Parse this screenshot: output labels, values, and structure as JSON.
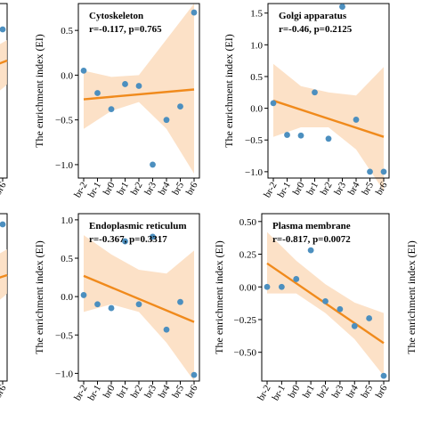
{
  "chart_data": [
    {
      "id": "cytoskeleton",
      "type": "scatter",
      "annotation_title": "Cytoskeleton",
      "annotation_stats": "r=-0.117, p=0.765",
      "ylabel": "The enrichment index (EI)",
      "xlabel": "",
      "categories": [
        "br-2",
        "br-1",
        "br0",
        "br1",
        "br2",
        "br3",
        "br4",
        "br5",
        "br6"
      ],
      "ylim": [
        -1.15,
        0.8
      ],
      "yticks": [
        -1.0,
        -0.5,
        0.0,
        0.5
      ],
      "ytick_labels": [
        "−1.0",
        "−0.5",
        "0.0",
        "0.5"
      ],
      "points": [
        0.05,
        -0.2,
        -0.38,
        -0.1,
        -0.12,
        -1.0,
        -0.5,
        -0.35,
        0.7
      ],
      "fit_line": [
        -0.27,
        -0.16
      ],
      "ci_upper": [
        0.05,
        -0.02,
        0.0,
        0.4,
        0.8
      ],
      "ci_lower": [
        -0.6,
        -0.4,
        -0.3,
        -0.6,
        -1.1
      ],
      "grid": false,
      "point_color": "#4c8fbf",
      "line_color": "#f08a1c",
      "band_color": "#fbd9b9"
    },
    {
      "id": "golgi",
      "type": "scatter",
      "annotation_title": "Golgi apparatus",
      "annotation_stats": "r=-0.46, p=0.2125",
      "ylabel": "The enrichment index (EI)",
      "xlabel": "",
      "categories": [
        "br-2",
        "br-1",
        "br0",
        "br1",
        "br2",
        "br3",
        "br4",
        "br5",
        "br6"
      ],
      "ylim": [
        -1.1,
        1.65
      ],
      "yticks": [
        -1.0,
        -0.5,
        0.0,
        0.5,
        1.0,
        1.5
      ],
      "ytick_labels": [
        "−1.0",
        "−0.5",
        "0.0",
        "0.5",
        "1.0",
        "1.5"
      ],
      "points": [
        0.08,
        -0.42,
        -0.43,
        0.25,
        -0.48,
        1.6,
        -0.18,
        -1.0,
        -1.0
      ],
      "fit_line": [
        0.12,
        -0.45
      ],
      "ci_upper": [
        0.7,
        0.35,
        0.25,
        0.2,
        0.65
      ],
      "ci_lower": [
        -0.45,
        -0.3,
        -0.3,
        -0.65,
        -1.3
      ],
      "grid": false,
      "point_color": "#4c8fbf",
      "line_color": "#f08a1c",
      "band_color": "#fbd9b9"
    },
    {
      "id": "er",
      "type": "scatter",
      "annotation_title": "Endoplasmic reticulum",
      "annotation_stats": "r=-0.367, p=0.3317",
      "ylabel": "The enrichment index (EI)",
      "xlabel": "",
      "categories": [
        "br-2",
        "br-1",
        "br0",
        "br1",
        "br2",
        "br3",
        "br4",
        "br5",
        "br6"
      ],
      "ylim": [
        -1.1,
        1.08
      ],
      "yticks": [
        -1.0,
        -0.5,
        0.0,
        0.5,
        1.0
      ],
      "ytick_labels": [
        "−1.0",
        "−0.5",
        "0.0",
        "0.5",
        "1.0"
      ],
      "points": [
        0.02,
        -0.1,
        -0.15,
        0.72,
        -0.1,
        0.78,
        -0.43,
        -0.07,
        -1.02
      ],
      "fit_line": [
        0.27,
        -0.33
      ],
      "ci_upper": [
        0.8,
        0.55,
        0.35,
        0.3,
        0.6
      ],
      "ci_lower": [
        -0.2,
        -0.1,
        -0.2,
        -0.6,
        -1.1
      ],
      "grid": false,
      "point_color": "#4c8fbf",
      "line_color": "#f08a1c",
      "band_color": "#fbd9b9"
    },
    {
      "id": "plasma",
      "type": "scatter",
      "annotation_title": "Plasma membrane",
      "annotation_stats": "r=-0.817, p=0.0072",
      "ylabel": "The enrichment index (EI)",
      "xlabel": "",
      "categories": [
        "br-2",
        "br-1",
        "br0",
        "br1",
        "br2",
        "br3",
        "br4",
        "br5",
        "br6"
      ],
      "ylim": [
        -0.72,
        0.56
      ],
      "yticks": [
        -0.5,
        -0.25,
        0.0,
        0.25,
        0.5
      ],
      "ytick_labels": [
        "−0.50",
        "−0.25",
        "0.00",
        "0.25",
        "0.50"
      ],
      "points": [
        0.0,
        0.0,
        0.06,
        0.28,
        -0.11,
        -0.17,
        -0.3,
        -0.24,
        -0.68
      ],
      "fit_line": [
        0.18,
        -0.43
      ],
      "ci_upper": [
        0.42,
        0.2,
        0.02,
        -0.12,
        -0.2
      ],
      "ci_lower": [
        -0.05,
        -0.05,
        -0.2,
        -0.4,
        -0.68
      ],
      "grid": false,
      "point_color": "#4c8fbf",
      "line_color": "#f08a1c",
      "band_color": "#fbd9b9"
    },
    {
      "id": "left-partial-top",
      "type": "scatter",
      "partial": true,
      "categories": [
        "br6"
      ],
      "points": [
        0.58
      ],
      "point_color": "#4c8fbf",
      "line_color": "#f08a1c",
      "band_color": "#fbd9b9"
    },
    {
      "id": "left-partial-bottom",
      "type": "scatter",
      "partial": true,
      "categories": [
        "br6"
      ],
      "points": [
        1.02
      ],
      "point_color": "#4c8fbf",
      "line_color": "#f08a1c",
      "band_color": "#fbd9b9"
    },
    {
      "id": "right-partial-bottom",
      "type": "scatter",
      "partial": true,
      "ylabel": "The enrichment index (EI)"
    }
  ]
}
